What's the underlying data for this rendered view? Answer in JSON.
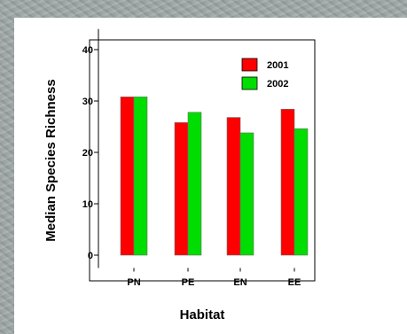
{
  "chart_data": {
    "type": "bar",
    "title": "",
    "xlabel": "Habitat",
    "ylabel": "Median Species Richness",
    "categories": [
      "PN",
      "PE",
      "EN",
      "EE"
    ],
    "series": [
      {
        "name": "2001",
        "color": "#ff0000",
        "values": [
          30.8,
          25.8,
          26.8,
          28.4
        ]
      },
      {
        "name": "2002",
        "color": "#00dd00",
        "values": [
          30.8,
          27.8,
          23.8,
          24.6
        ]
      }
    ],
    "ylim": [
      -2.5,
      44
    ],
    "yticks": [
      0,
      10,
      20,
      30,
      40
    ],
    "grid": false,
    "legend_position": "top-right"
  }
}
